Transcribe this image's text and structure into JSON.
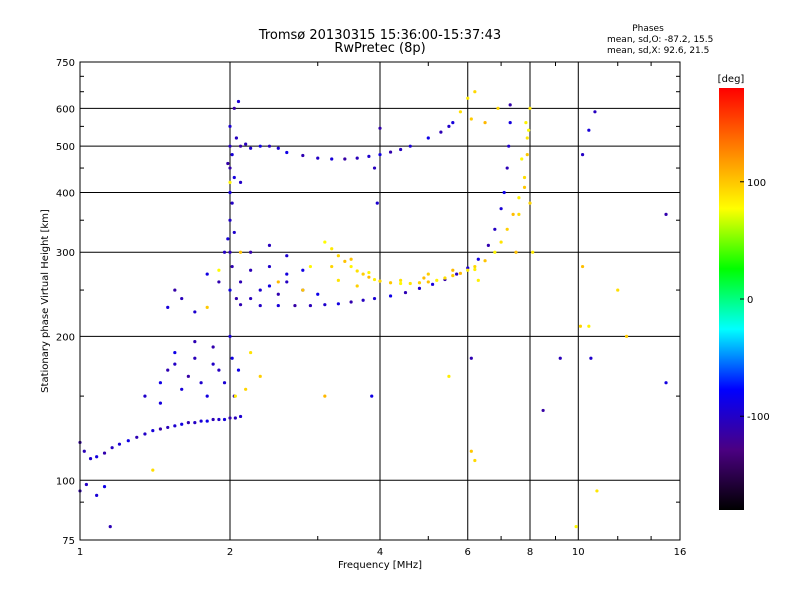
{
  "chart_data": {
    "type": "scatter",
    "title": "Tromsø 20130315 15:36:00-15:37:43",
    "subtitle": "RwPretec (8p)",
    "xlabel": "Frequency [MHz]",
    "ylabel": "Stationary phase Virtual Height [km]",
    "x_scale": "log",
    "y_scale": "log",
    "xlim": [
      1,
      16
    ],
    "ylim": [
      75,
      750
    ],
    "x_ticks": [
      "1",
      "2",
      "4",
      "6",
      "8",
      "10",
      "16"
    ],
    "y_ticks": [
      "75",
      "100",
      "200",
      "300",
      "400",
      "500",
      "600",
      "750"
    ],
    "grid": true,
    "phase_box": {
      "title": "Phases",
      "line_o": "mean, sd,O: -87.2, 15.5",
      "line_x": "mean, sd,X:  92.6, 21.5"
    },
    "colorbar": {
      "label": "[deg]",
      "range": [
        -180,
        180
      ],
      "ticks": [
        "100",
        "0",
        "-100"
      ],
      "colors": [
        "#000000",
        "#4b0082",
        "#0000ff",
        "#00ffff",
        "#00ff00",
        "#ffff00",
        "#ff8000",
        "#ff0000"
      ]
    },
    "series": [
      {
        "points": [
          [
            1.0,
            120
          ],
          [
            1.02,
            115
          ],
          [
            1.05,
            111
          ],
          [
            1.08,
            112
          ],
          [
            1.12,
            114
          ],
          [
            1.16,
            117
          ],
          [
            1.2,
            119
          ],
          [
            1.25,
            121
          ],
          [
            1.3,
            123
          ],
          [
            1.35,
            125
          ],
          [
            1.4,
            127
          ],
          [
            1.45,
            128
          ],
          [
            1.5,
            129
          ],
          [
            1.55,
            130
          ],
          [
            1.6,
            131
          ],
          [
            1.65,
            132
          ],
          [
            1.7,
            132
          ],
          [
            1.75,
            133
          ],
          [
            1.8,
            133
          ],
          [
            1.85,
            134
          ],
          [
            1.9,
            134
          ],
          [
            1.95,
            134
          ],
          [
            2.0,
            135
          ],
          [
            2.05,
            135
          ],
          [
            2.1,
            136
          ],
          [
            1.45,
            160
          ],
          [
            1.5,
            170
          ],
          [
            1.55,
            175
          ],
          [
            1.6,
            155
          ],
          [
            1.65,
            165
          ],
          [
            1.7,
            180
          ],
          [
            1.75,
            160
          ],
          [
            1.8,
            150
          ],
          [
            1.85,
            190
          ],
          [
            1.9,
            170
          ],
          [
            1.95,
            160
          ],
          [
            1.55,
            185
          ],
          [
            1.7,
            195
          ],
          [
            1.85,
            175
          ],
          [
            1.5,
            230
          ],
          [
            1.55,
            250
          ],
          [
            1.6,
            240
          ],
          [
            1.7,
            225
          ],
          [
            1.8,
            270
          ],
          [
            1.9,
            260
          ],
          [
            1.95,
            300
          ],
          [
            2.0,
            200
          ],
          [
            2.0,
            250
          ],
          [
            2.0,
            300
          ],
          [
            2.0,
            350
          ],
          [
            2.0,
            400
          ],
          [
            2.0,
            450
          ],
          [
            2.0,
            500
          ],
          [
            2.0,
            550
          ],
          [
            2.02,
            180
          ],
          [
            2.02,
            280
          ],
          [
            2.02,
            380
          ],
          [
            2.02,
            480
          ],
          [
            2.04,
            600
          ],
          [
            2.04,
            150
          ],
          [
            2.04,
            330
          ],
          [
            2.04,
            430
          ],
          [
            2.06,
            240
          ],
          [
            2.06,
            520
          ],
          [
            2.08,
            620
          ],
          [
            2.08,
            170
          ],
          [
            2.1,
            260
          ],
          [
            2.1,
            420
          ],
          [
            1.98,
            320
          ],
          [
            1.98,
            460
          ],
          [
            2.2,
            240
          ],
          [
            2.3,
            250
          ],
          [
            2.4,
            255
          ],
          [
            2.5,
            245
          ],
          [
            2.6,
            260
          ],
          [
            2.8,
            250
          ],
          [
            3.0,
            245
          ],
          [
            2.2,
            275
          ],
          [
            2.4,
            280
          ],
          [
            2.6,
            270
          ],
          [
            2.2,
            300
          ],
          [
            2.4,
            310
          ],
          [
            2.6,
            295
          ],
          [
            2.8,
            275
          ],
          [
            2.1,
            233
          ],
          [
            2.3,
            232
          ],
          [
            2.5,
            232
          ],
          [
            2.7,
            232
          ],
          [
            2.9,
            232
          ],
          [
            3.1,
            233
          ],
          [
            3.3,
            234
          ],
          [
            3.5,
            236
          ],
          [
            3.7,
            238
          ],
          [
            3.9,
            240
          ],
          [
            4.2,
            243
          ],
          [
            4.5,
            247
          ],
          [
            4.8,
            252
          ],
          [
            5.1,
            257
          ],
          [
            5.4,
            263
          ],
          [
            5.7,
            270
          ],
          [
            6.0,
            278
          ],
          [
            6.3,
            290
          ],
          [
            6.6,
            310
          ],
          [
            6.8,
            335
          ],
          [
            7.0,
            370
          ],
          [
            7.1,
            400
          ],
          [
            7.2,
            450
          ],
          [
            7.25,
            500
          ],
          [
            7.3,
            560
          ],
          [
            7.3,
            610
          ],
          [
            2.4,
            500
          ],
          [
            2.5,
            495
          ],
          [
            2.6,
            485
          ],
          [
            2.8,
            478
          ],
          [
            3.0,
            472
          ],
          [
            3.2,
            470
          ],
          [
            3.4,
            470
          ],
          [
            3.6,
            472
          ],
          [
            3.8,
            476
          ],
          [
            4.0,
            480
          ],
          [
            4.2,
            486
          ],
          [
            4.4,
            492
          ],
          [
            4.6,
            500
          ],
          [
            5.0,
            520
          ],
          [
            5.3,
            535
          ],
          [
            5.5,
            550
          ],
          [
            5.6,
            560
          ],
          [
            2.1,
            500
          ],
          [
            2.15,
            505
          ],
          [
            2.2,
            495
          ],
          [
            2.3,
            500
          ],
          [
            1.0,
            95
          ],
          [
            1.03,
            98
          ],
          [
            1.08,
            93
          ],
          [
            1.12,
            97
          ],
          [
            1.15,
            80
          ],
          [
            1.35,
            150
          ],
          [
            1.45,
            145
          ],
          [
            4.0,
            545
          ],
          [
            3.9,
            450
          ],
          [
            3.95,
            380
          ],
          [
            3.85,
            150
          ],
          [
            6.1,
            180
          ],
          [
            10.2,
            480
          ],
          [
            10.5,
            540
          ],
          [
            8.5,
            140
          ],
          [
            9.2,
            180
          ],
          [
            10.6,
            180
          ],
          [
            15.0,
            160
          ],
          [
            15.0,
            360
          ],
          [
            10.8,
            590
          ]
        ]
      },
      {
        "points": [
          [
            3.1,
            315
          ],
          [
            3.2,
            305
          ],
          [
            3.3,
            295
          ],
          [
            3.4,
            287
          ],
          [
            3.5,
            280
          ],
          [
            3.6,
            274
          ],
          [
            3.7,
            270
          ],
          [
            3.8,
            266
          ],
          [
            3.9,
            263
          ],
          [
            4.0,
            261
          ],
          [
            4.2,
            259
          ],
          [
            4.4,
            258
          ],
          [
            4.6,
            258
          ],
          [
            4.8,
            259
          ],
          [
            5.0,
            260
          ],
          [
            5.2,
            262
          ],
          [
            5.4,
            265
          ],
          [
            5.6,
            268
          ],
          [
            5.8,
            271
          ],
          [
            6.0,
            275
          ],
          [
            6.2,
            280
          ],
          [
            6.5,
            288
          ],
          [
            6.8,
            300
          ],
          [
            7.0,
            315
          ],
          [
            7.2,
            335
          ],
          [
            7.4,
            360
          ],
          [
            7.6,
            390
          ],
          [
            7.8,
            430
          ],
          [
            7.9,
            480
          ],
          [
            7.95,
            540
          ],
          [
            8.0,
            600
          ],
          [
            3.2,
            280
          ],
          [
            3.5,
            290
          ],
          [
            3.8,
            272
          ],
          [
            4.4,
            262
          ],
          [
            5.0,
            270
          ],
          [
            5.6,
            275
          ],
          [
            6.2,
            276
          ],
          [
            7.6,
            360
          ],
          [
            7.8,
            410
          ],
          [
            7.7,
            470
          ],
          [
            7.9,
            520
          ],
          [
            8.0,
            380
          ],
          [
            7.5,
            300
          ],
          [
            7.85,
            560
          ],
          [
            5.8,
            590
          ],
          [
            6.1,
            570
          ],
          [
            6.5,
            560
          ],
          [
            6.0,
            630
          ],
          [
            6.2,
            650
          ],
          [
            2.8,
            250
          ],
          [
            2.9,
            280
          ],
          [
            3.3,
            262
          ],
          [
            3.6,
            255
          ],
          [
            4.9,
            265
          ],
          [
            6.3,
            262
          ],
          [
            1.4,
            105
          ],
          [
            1.8,
            230
          ],
          [
            1.9,
            275
          ],
          [
            2.05,
            150
          ],
          [
            2.15,
            155
          ],
          [
            2.1,
            300
          ],
          [
            2.0,
            420
          ],
          [
            2.2,
            185
          ],
          [
            2.3,
            165
          ],
          [
            2.5,
            260
          ],
          [
            5.5,
            165
          ],
          [
            6.2,
            110
          ],
          [
            6.1,
            115
          ],
          [
            9.9,
            80
          ],
          [
            10.9,
            95
          ],
          [
            10.1,
            210
          ],
          [
            10.2,
            280
          ],
          [
            10.5,
            210
          ],
          [
            12.0,
            250
          ],
          [
            12.5,
            200
          ],
          [
            3.1,
            150
          ],
          [
            8.1,
            300
          ],
          [
            6.9,
            600
          ]
        ]
      }
    ]
  }
}
